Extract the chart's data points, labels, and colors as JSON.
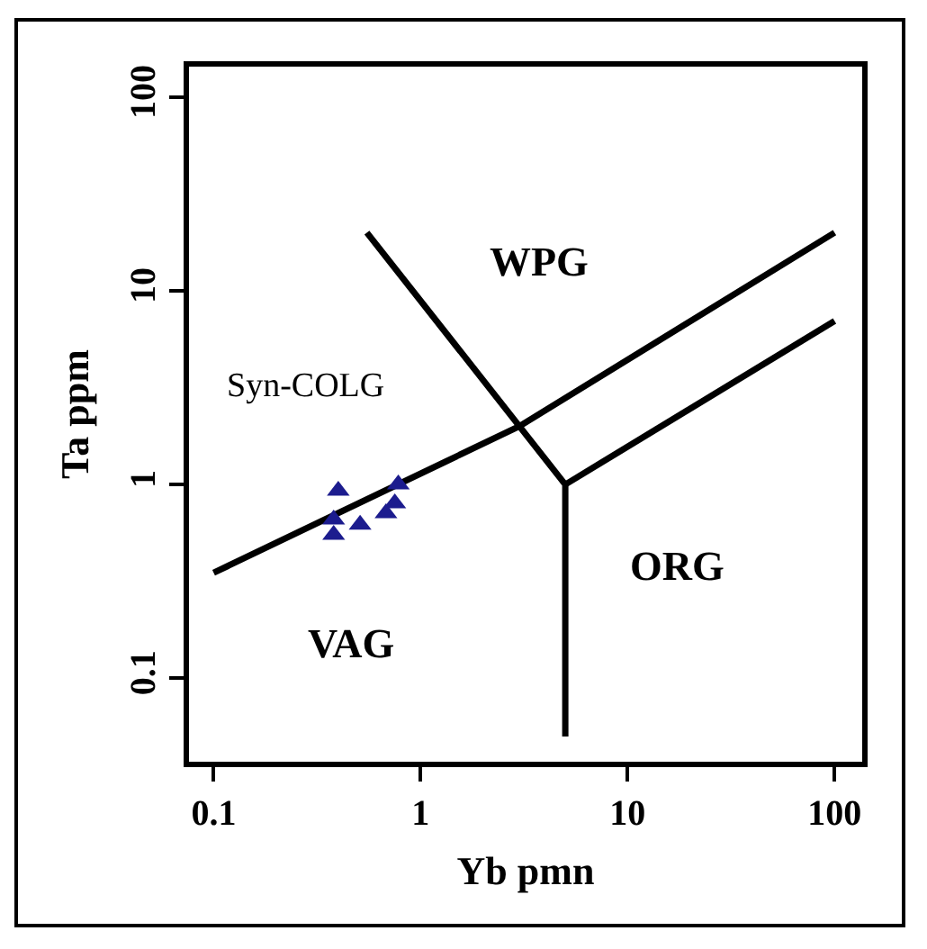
{
  "chart_data": {
    "type": "scatter",
    "xlabel": "Yb pmn",
    "ylabel": "Ta ppm",
    "log": "xy",
    "grid": false,
    "xlim": [
      0.076,
      136
    ],
    "xticks": [
      0.1,
      1,
      10,
      100
    ],
    "ylim": [
      0.037,
      144
    ],
    "yticks": [
      0.1,
      1,
      10,
      100
    ],
    "series": [
      {
        "marker": "triangle",
        "color": "#1c1c8e",
        "x": [
          0.4,
          0.38,
          0.38,
          0.51,
          0.68,
          0.78,
          0.75
        ],
        "values": [
          0.93,
          0.55,
          0.66,
          0.62,
          0.71,
          1.0,
          0.8
        ]
      },
      {
        "type": "line",
        "marker": "none",
        "color": "#000000",
        "x": [
          0.1,
          3,
          100
        ],
        "values": [
          0.35,
          2,
          20
        ]
      },
      {
        "type": "line",
        "marker": "none",
        "color": "#000000",
        "x": [
          0.55,
          3,
          5,
          5
        ],
        "values": [
          20,
          2,
          1,
          0.05
        ]
      },
      {
        "type": "line",
        "marker": "none",
        "color": "#000000",
        "x": [
          5,
          100
        ],
        "values": [
          1,
          7
        ]
      }
    ],
    "annotations": [
      "WPG",
      "Syn-COLG",
      "VAG",
      "ORG"
    ]
  }
}
